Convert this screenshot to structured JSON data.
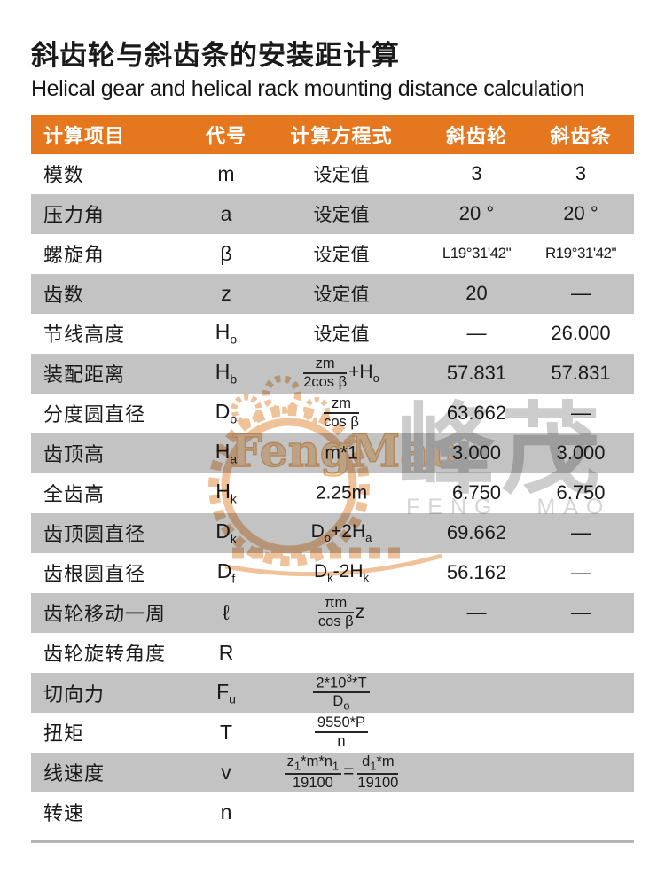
{
  "page": {
    "title_zh": "斜齿轮与斜齿条的安装距计算",
    "title_en": "Helical gear and helical rack mounting distance calculation"
  },
  "colors": {
    "header_bg": "#E5771E",
    "row_shade": "#C3C3C3",
    "text": "#1A1A1A",
    "watermark_orange": "#F0C29A",
    "watermark_gray": "#CDCDCD"
  },
  "table": {
    "headers": [
      "计算项目",
      "代号",
      "计算方程式",
      "斜齿轮",
      "斜齿条"
    ],
    "rows": [
      {
        "item": "模数",
        "symbol": {
          "base": "m",
          "sub": ""
        },
        "formula": [
          {
            "tokens": [
              {
                "t": "设定值"
              }
            ]
          }
        ],
        "gear": "3",
        "rack": "3",
        "shade": false,
        "small_values": false
      },
      {
        "item": "压力角",
        "symbol": {
          "base": "a",
          "sub": ""
        },
        "formula": [
          {
            "tokens": [
              {
                "t": "设定值"
              }
            ]
          }
        ],
        "gear": "20 °",
        "rack": "20 °",
        "shade": true,
        "small_values": false
      },
      {
        "item": "螺旋角",
        "symbol": {
          "base": "β",
          "sub": ""
        },
        "formula": [
          {
            "tokens": [
              {
                "t": "设定值"
              }
            ]
          }
        ],
        "gear": "L19°31'42\"",
        "rack": "R19°31'42\"",
        "shade": false,
        "small_values": true
      },
      {
        "item": "齿数",
        "symbol": {
          "base": "z",
          "sub": ""
        },
        "formula": [
          {
            "tokens": [
              {
                "t": "设定值"
              }
            ]
          }
        ],
        "gear": "20",
        "rack": "—",
        "shade": true,
        "small_values": false
      },
      {
        "item": "节线高度",
        "symbol": {
          "base": "H",
          "sub": "o"
        },
        "formula": [
          {
            "tokens": [
              {
                "t": "设定值"
              }
            ]
          }
        ],
        "gear": "—",
        "rack": "26.000",
        "shade": false,
        "small_values": false
      },
      {
        "item": "装配距离",
        "symbol": {
          "base": "H",
          "sub": "b"
        },
        "formula": [
          {
            "frac": {
              "num": [
                {
                  "t": "zm"
                }
              ],
              "den": [
                {
                  "t": "2cos β"
                }
              ]
            }
          },
          {
            "tokens": [
              {
                "t": "+H"
              },
              {
                "s": "o"
              }
            ]
          }
        ],
        "gear": "57.831",
        "rack": "57.831",
        "shade": true,
        "small_values": false
      },
      {
        "item": "分度圆直径",
        "symbol": {
          "base": "D",
          "sub": "o"
        },
        "formula": [
          {
            "frac": {
              "num": [
                {
                  "t": "zm"
                }
              ],
              "den": [
                {
                  "t": "cos β"
                }
              ]
            }
          }
        ],
        "gear": "63.662",
        "rack": "—",
        "shade": false,
        "small_values": false
      },
      {
        "item": "齿顶高",
        "symbol": {
          "base": "H",
          "sub": "a"
        },
        "formula": [
          {
            "tokens": [
              {
                "t": "m*1"
              }
            ]
          }
        ],
        "gear": "3.000",
        "rack": "3.000",
        "shade": true,
        "small_values": false
      },
      {
        "item": "全齿高",
        "symbol": {
          "base": "H",
          "sub": "k"
        },
        "formula": [
          {
            "tokens": [
              {
                "t": "2.25m"
              }
            ]
          }
        ],
        "gear": "6.750",
        "rack": "6.750",
        "shade": false,
        "small_values": false
      },
      {
        "item": "齿顶圆直径",
        "symbol": {
          "base": "D",
          "sub": "k"
        },
        "formula": [
          {
            "tokens": [
              {
                "t": "D"
              },
              {
                "s": "o"
              },
              {
                "t": "+2H"
              },
              {
                "s": "a"
              }
            ]
          }
        ],
        "gear": "69.662",
        "rack": "—",
        "shade": true,
        "small_values": false
      },
      {
        "item": "齿根圆直径",
        "symbol": {
          "base": "D",
          "sub": "f"
        },
        "formula": [
          {
            "tokens": [
              {
                "t": "D"
              },
              {
                "s": "k"
              },
              {
                "t": "-2H"
              },
              {
                "s": "k"
              }
            ]
          }
        ],
        "gear": "56.162",
        "rack": "—",
        "shade": false,
        "small_values": false
      },
      {
        "item": "齿轮移动一周",
        "symbol": {
          "base": "ℓ",
          "sub": ""
        },
        "formula": [
          {
            "frac": {
              "num": [
                {
                  "t": "πm"
                }
              ],
              "den": [
                {
                  "t": "cos β"
                }
              ]
            }
          },
          {
            "tokens": [
              {
                "t": "z"
              }
            ]
          }
        ],
        "gear": "—",
        "rack": "—",
        "shade": true,
        "small_values": false
      },
      {
        "item": "齿轮旋转角度",
        "symbol": {
          "base": "R",
          "sub": ""
        },
        "formula": [],
        "gear": "",
        "rack": "",
        "shade": false,
        "small_values": false
      },
      {
        "item": "切向力",
        "symbol": {
          "base": "F",
          "sub": "u"
        },
        "formula": [
          {
            "frac": {
              "num": [
                {
                  "t": "2*10"
                },
                {
                  "sup": "3"
                },
                {
                  "t": "*T"
                }
              ],
              "den": [
                {
                  "t": "D"
                },
                {
                  "s": "o"
                }
              ]
            }
          }
        ],
        "gear": "",
        "rack": "",
        "shade": true,
        "small_values": false
      },
      {
        "item": "扭矩",
        "symbol": {
          "base": "T",
          "sub": ""
        },
        "formula": [
          {
            "frac": {
              "num": [
                {
                  "t": "9550*P"
                }
              ],
              "den": [
                {
                  "t": "n"
                }
              ]
            }
          }
        ],
        "gear": "",
        "rack": "",
        "shade": false,
        "small_values": false
      },
      {
        "item": "线速度",
        "symbol": {
          "base": "v",
          "sub": ""
        },
        "formula": [
          {
            "frac": {
              "num": [
                {
                  "t": "z"
                },
                {
                  "s": "1"
                },
                {
                  "t": "*m*n"
                },
                {
                  "s": "1"
                }
              ],
              "den": [
                {
                  "t": "19100"
                }
              ]
            }
          },
          {
            "tokens": [
              {
                "t": "="
              }
            ]
          },
          {
            "frac": {
              "num": [
                {
                  "t": "d"
                },
                {
                  "s": "1"
                },
                {
                  "t": "*m"
                }
              ],
              "den": [
                {
                  "t": "19100"
                }
              ]
            }
          }
        ],
        "gear": "",
        "rack": "",
        "shade": true,
        "small_values": false
      },
      {
        "item": "转速",
        "symbol": {
          "base": "n",
          "sub": ""
        },
        "formula": [],
        "gear": "",
        "rack": "",
        "shade": false,
        "small_values": false
      }
    ]
  },
  "watermark": {
    "logo_text": "FengMao",
    "cn": "峰茂",
    "en": "FENG MAO"
  }
}
